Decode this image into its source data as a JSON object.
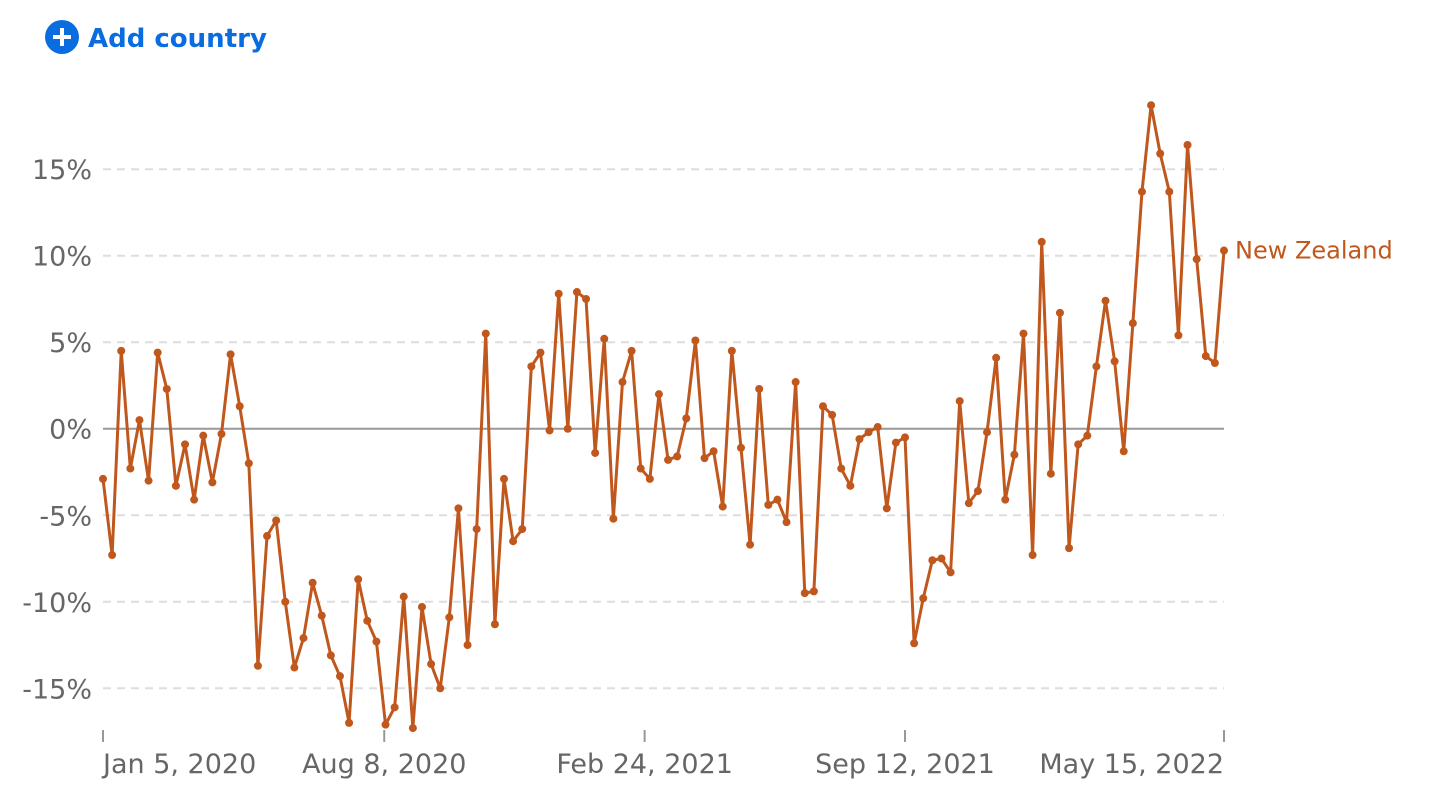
{
  "button": {
    "label": "Add country"
  },
  "chart_data": {
    "type": "line",
    "series": [
      {
        "name": "New Zealand",
        "color": "#c0571d",
        "values": [
          -2.9,
          -7.3,
          4.5,
          -2.3,
          0.5,
          -3.0,
          4.4,
          2.3,
          -3.3,
          -0.9,
          -4.1,
          -0.4,
          -3.1,
          -0.3,
          4.3,
          1.3,
          -2.0,
          -13.7,
          -6.2,
          -5.3,
          -10.0,
          -13.8,
          -12.1,
          -8.9,
          -10.8,
          -13.1,
          -14.3,
          -17.0,
          -8.7,
          -11.1,
          -12.3,
          -17.1,
          -16.1,
          -9.7,
          -17.3,
          -10.3,
          -13.6,
          -15.0,
          -10.9,
          -4.6,
          -12.5,
          -5.8,
          5.5,
          -11.3,
          -2.9,
          -6.5,
          -5.8,
          3.6,
          4.4,
          -0.1,
          7.8,
          0.0,
          7.9,
          7.5,
          -1.4,
          5.2,
          -5.2,
          2.7,
          4.5,
          -2.3,
          -2.9,
          2.0,
          -1.8,
          -1.6,
          0.6,
          5.1,
          -1.7,
          -1.3,
          -4.5,
          4.5,
          -1.1,
          -6.7,
          2.3,
          -4.4,
          -4.1,
          -5.4,
          2.7,
          -9.5,
          -9.4,
          1.3,
          0.8,
          -2.3,
          -3.3,
          -0.6,
          -0.2,
          0.1,
          -4.6,
          -0.8,
          -0.5,
          -12.4,
          -9.8,
          -7.6,
          -7.5,
          -8.3,
          1.6,
          -4.3,
          -3.6,
          -0.2,
          4.1,
          -4.1,
          -1.5,
          5.5,
          -7.3,
          10.8,
          -2.6,
          6.7,
          -6.9,
          -0.9,
          -0.4,
          3.6,
          7.4,
          3.9,
          -1.3,
          6.1,
          13.7,
          18.7,
          15.9,
          13.7,
          5.4,
          16.4,
          9.8,
          4.2,
          3.8,
          10.3
        ]
      }
    ],
    "xlim": [
      0,
      123
    ],
    "xticks": [
      {
        "value": 0,
        "label": "Jan 5, 2020"
      },
      {
        "value": 30.86,
        "label": "Aug 8, 2020"
      },
      {
        "value": 59.43,
        "label": "Feb 24, 2021"
      },
      {
        "value": 88,
        "label": "Sep 12, 2021"
      },
      {
        "value": 123,
        "label": "May 15, 2022"
      }
    ],
    "ylim": [
      -17.7,
      19
    ],
    "yticks": [
      {
        "value": -15,
        "label": "-15%"
      },
      {
        "value": -10,
        "label": "-10%"
      },
      {
        "value": -5,
        "label": "-5%"
      },
      {
        "value": 0,
        "label": "0%"
      },
      {
        "value": 5,
        "label": "5%"
      },
      {
        "value": 10,
        "label": "10%"
      },
      {
        "value": 15,
        "label": "15%"
      }
    ],
    "grid": true
  }
}
